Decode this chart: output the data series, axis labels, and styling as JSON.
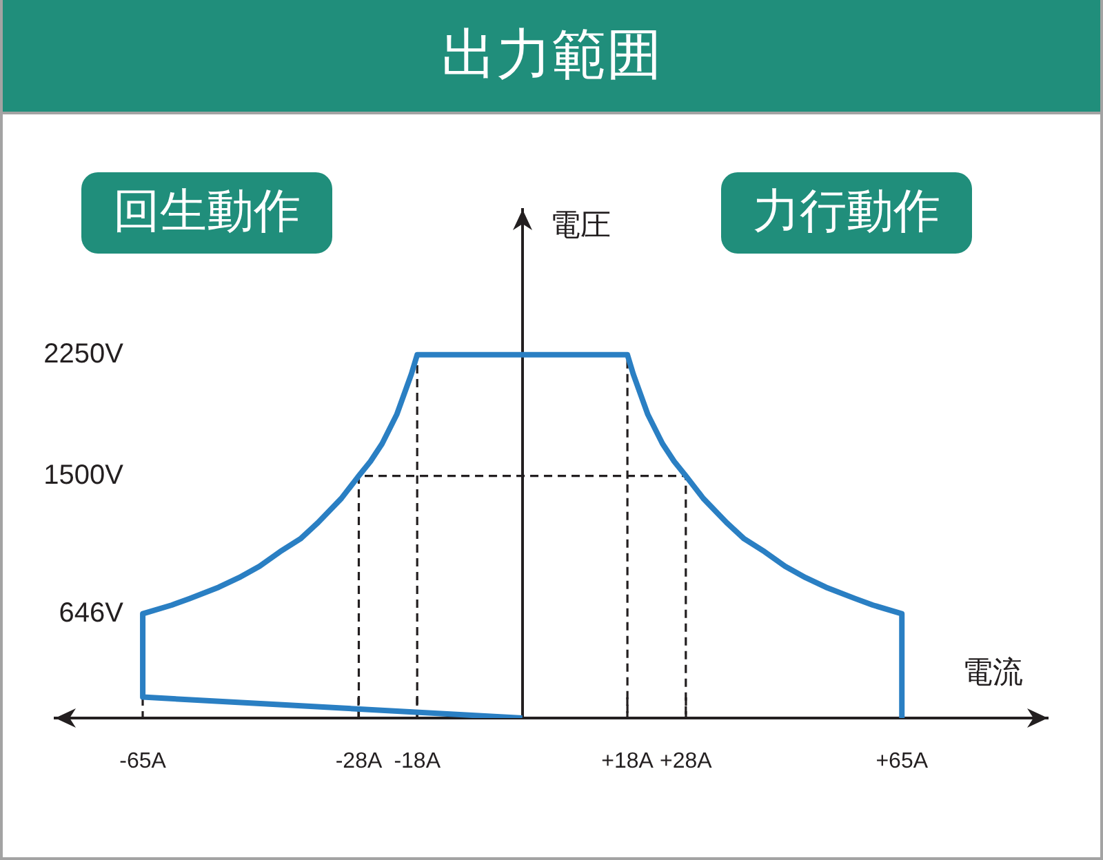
{
  "chart_data": {
    "type": "line",
    "title": "出力範囲",
    "xlabel": "電流",
    "ylabel": "電圧",
    "xlim": [
      -80,
      90
    ],
    "ylim": [
      0,
      3150
    ],
    "xticks": [
      {
        "value": -65,
        "label": "-65A"
      },
      {
        "value": -28,
        "label": "-28A"
      },
      {
        "value": -18,
        "label": "-18A"
      },
      {
        "value": 18,
        "label": "+18A"
      },
      {
        "value": 28,
        "label": "+28A"
      },
      {
        "value": 65,
        "label": "+65A"
      }
    ],
    "yticks": [
      {
        "value": 646,
        "label": "646V"
      },
      {
        "value": 1500,
        "label": "1500V"
      },
      {
        "value": 2250,
        "label": "2250V"
      }
    ],
    "series": [
      {
        "color": "#2a7fc3",
        "line_style": "solid",
        "x": [
          0,
          -65,
          -65,
          -60,
          -57,
          -52,
          -48.5,
          -45,
          -41.5,
          -38,
          -35,
          -31,
          -28,
          -26,
          -24,
          -21.5,
          -20,
          -19,
          -18,
          18,
          19,
          20,
          21.5,
          24,
          26,
          28,
          31,
          35,
          38,
          41.5,
          45,
          48.5,
          52,
          57,
          60,
          65,
          65
        ],
        "values": [
          0,
          130,
          646,
          700,
          740,
          810,
          870,
          940,
          1030,
          1110,
          1210,
          1360,
          1500,
          1590,
          1700,
          1880,
          2030,
          2130,
          2250,
          2250,
          2130,
          2030,
          1880,
          1700,
          1590,
          1500,
          1360,
          1210,
          1110,
          1030,
          940,
          870,
          810,
          740,
          700,
          646,
          0
        ]
      },
      {
        "color": "#231f20",
        "line_style": "dashed",
        "x": [
          -28,
          -28,
          28,
          28
        ],
        "values": [
          0,
          1500,
          1500,
          0
        ]
      },
      {
        "color": "#231f20",
        "line_style": "dashed",
        "x": [
          -18,
          -18,
          18,
          18
        ],
        "values": [
          0,
          2250,
          2250,
          0
        ]
      }
    ],
    "annotations": [
      "回生動作",
      "力行動作"
    ]
  }
}
